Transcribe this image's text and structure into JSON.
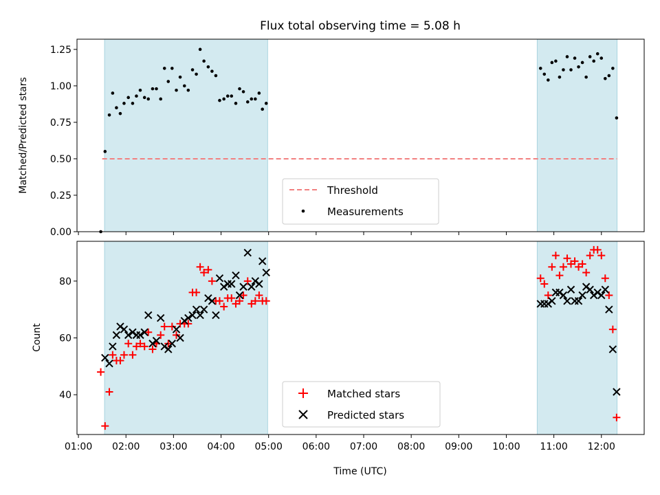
{
  "chart_data": {
    "type": "scatter",
    "title": "Flux total observing time = 5.08 h",
    "xlabel": "Time (UTC)",
    "x_ticks": [
      "01:00",
      "02:00",
      "03:00",
      "04:00",
      "05:00",
      "06:00",
      "07:00",
      "08:00",
      "09:00",
      "10:00",
      "11:00",
      "12:00"
    ],
    "xlim_hours": [
      0.97,
      12.9
    ],
    "shaded_intervals_hours": [
      [
        1.55,
        4.98
      ],
      [
        10.65,
        12.33
      ]
    ],
    "colors": {
      "shade": "#d3eaf0",
      "shade_edge": "#a9d3df",
      "threshold": "#f28080",
      "matched": "#ff0000",
      "predicted": "#000000",
      "measure": "#000000"
    },
    "panels": [
      {
        "ylabel": "Matched/Predicted stars",
        "ylim": [
          0,
          1.32
        ],
        "y_ticks": [
          0,
          0.25,
          0.5,
          0.75,
          1.0,
          1.25
        ],
        "y_tick_labels": [
          "0.00",
          "0.25",
          "0.50",
          "0.75",
          "1.00",
          "1.25"
        ],
        "threshold": 0.5,
        "threshold_range_hours": [
          1.5,
          12.33
        ],
        "legend": [
          "Threshold",
          "Measurements"
        ],
        "measurements": [
          [
            1.47,
            0.0
          ],
          [
            1.56,
            0.55
          ],
          [
            1.65,
            0.8
          ],
          [
            1.72,
            0.95
          ],
          [
            1.8,
            0.85
          ],
          [
            1.88,
            0.81
          ],
          [
            1.96,
            0.88
          ],
          [
            2.05,
            0.92
          ],
          [
            2.14,
            0.88
          ],
          [
            2.22,
            0.93
          ],
          [
            2.3,
            0.97
          ],
          [
            2.39,
            0.92
          ],
          [
            2.47,
            0.91
          ],
          [
            2.56,
            0.98
          ],
          [
            2.64,
            0.98
          ],
          [
            2.73,
            0.91
          ],
          [
            2.81,
            1.12
          ],
          [
            2.89,
            1.03
          ],
          [
            2.97,
            1.12
          ],
          [
            3.06,
            0.97
          ],
          [
            3.14,
            1.06
          ],
          [
            3.23,
            1.0
          ],
          [
            3.31,
            0.97
          ],
          [
            3.4,
            1.11
          ],
          [
            3.48,
            1.08
          ],
          [
            3.56,
            1.25
          ],
          [
            3.64,
            1.17
          ],
          [
            3.73,
            1.13
          ],
          [
            3.81,
            1.1
          ],
          [
            3.89,
            1.07
          ],
          [
            3.97,
            0.9
          ],
          [
            4.06,
            0.91
          ],
          [
            4.14,
            0.93
          ],
          [
            4.22,
            0.93
          ],
          [
            4.31,
            0.88
          ],
          [
            4.39,
            0.98
          ],
          [
            4.47,
            0.96
          ],
          [
            4.56,
            0.89
          ],
          [
            4.64,
            0.91
          ],
          [
            4.72,
            0.91
          ],
          [
            4.8,
            0.95
          ],
          [
            4.87,
            0.84
          ],
          [
            4.95,
            0.88
          ],
          [
            10.72,
            1.12
          ],
          [
            10.8,
            1.08
          ],
          [
            10.88,
            1.04
          ],
          [
            10.96,
            1.16
          ],
          [
            11.04,
            1.17
          ],
          [
            11.12,
            1.06
          ],
          [
            11.2,
            1.11
          ],
          [
            11.28,
            1.2
          ],
          [
            11.36,
            1.11
          ],
          [
            11.44,
            1.19
          ],
          [
            11.52,
            1.13
          ],
          [
            11.6,
            1.16
          ],
          [
            11.68,
            1.06
          ],
          [
            11.76,
            1.2
          ],
          [
            11.84,
            1.17
          ],
          [
            11.92,
            1.22
          ],
          [
            12.0,
            1.19
          ],
          [
            12.08,
            1.05
          ],
          [
            12.16,
            1.07
          ],
          [
            12.24,
            1.12
          ],
          [
            12.32,
            0.78
          ]
        ]
      },
      {
        "ylabel": "Count",
        "ylim": [
          26,
          94
        ],
        "y_ticks": [
          40,
          60,
          80
        ],
        "y_tick_labels": [
          "40",
          "60",
          "80"
        ],
        "legend": [
          "Matched stars",
          "Predicted stars"
        ],
        "matched": [
          [
            1.47,
            48
          ],
          [
            1.56,
            29
          ],
          [
            1.65,
            41
          ],
          [
            1.72,
            54
          ],
          [
            1.8,
            52
          ],
          [
            1.88,
            52
          ],
          [
            1.96,
            54
          ],
          [
            2.05,
            58
          ],
          [
            2.14,
            54
          ],
          [
            2.22,
            57
          ],
          [
            2.3,
            58
          ],
          [
            2.39,
            57
          ],
          [
            2.47,
            62
          ],
          [
            2.56,
            56
          ],
          [
            2.64,
            58
          ],
          [
            2.73,
            61
          ],
          [
            2.81,
            64
          ],
          [
            2.89,
            58
          ],
          [
            2.97,
            64
          ],
          [
            3.06,
            61
          ],
          [
            3.14,
            65
          ],
          [
            3.23,
            65
          ],
          [
            3.31,
            65
          ],
          [
            3.4,
            76
          ],
          [
            3.48,
            76
          ],
          [
            3.56,
            85
          ],
          [
            3.64,
            83
          ],
          [
            3.73,
            84
          ],
          [
            3.81,
            80
          ],
          [
            3.89,
            73
          ],
          [
            3.97,
            73
          ],
          [
            4.06,
            71
          ],
          [
            4.14,
            74
          ],
          [
            4.22,
            74
          ],
          [
            4.31,
            72
          ],
          [
            4.39,
            73
          ],
          [
            4.47,
            75
          ],
          [
            4.56,
            80
          ],
          [
            4.64,
            72
          ],
          [
            4.72,
            73
          ],
          [
            4.8,
            75
          ],
          [
            4.87,
            73
          ],
          [
            4.95,
            73
          ],
          [
            10.72,
            81
          ],
          [
            10.8,
            79
          ],
          [
            10.88,
            75
          ],
          [
            10.96,
            85
          ],
          [
            11.04,
            89
          ],
          [
            11.12,
            82
          ],
          [
            11.2,
            85
          ],
          [
            11.28,
            88
          ],
          [
            11.36,
            86
          ],
          [
            11.44,
            87
          ],
          [
            11.52,
            85
          ],
          [
            11.6,
            86
          ],
          [
            11.68,
            83
          ],
          [
            11.76,
            89
          ],
          [
            11.84,
            91
          ],
          [
            11.92,
            91
          ],
          [
            12.0,
            89
          ],
          [
            12.08,
            81
          ],
          [
            12.16,
            75
          ],
          [
            12.24,
            63
          ],
          [
            12.32,
            32
          ]
        ],
        "predicted": [
          [
            1.56,
            53
          ],
          [
            1.65,
            51
          ],
          [
            1.72,
            57
          ],
          [
            1.8,
            61
          ],
          [
            1.88,
            64
          ],
          [
            1.96,
            63
          ],
          [
            2.05,
            61
          ],
          [
            2.14,
            62
          ],
          [
            2.22,
            61
          ],
          [
            2.3,
            61
          ],
          [
            2.39,
            62
          ],
          [
            2.47,
            68
          ],
          [
            2.56,
            58
          ],
          [
            2.64,
            59
          ],
          [
            2.73,
            67
          ],
          [
            2.81,
            57
          ],
          [
            2.89,
            56
          ],
          [
            2.97,
            58
          ],
          [
            3.06,
            63
          ],
          [
            3.14,
            60
          ],
          [
            3.23,
            66
          ],
          [
            3.31,
            67
          ],
          [
            3.4,
            68
          ],
          [
            3.48,
            70
          ],
          [
            3.56,
            68
          ],
          [
            3.64,
            70
          ],
          [
            3.73,
            74
          ],
          [
            3.81,
            73
          ],
          [
            3.89,
            68
          ],
          [
            3.97,
            81
          ],
          [
            4.06,
            78
          ],
          [
            4.14,
            79
          ],
          [
            4.22,
            79
          ],
          [
            4.31,
            82
          ],
          [
            4.39,
            75
          ],
          [
            4.47,
            78
          ],
          [
            4.56,
            90
          ],
          [
            4.64,
            78
          ],
          [
            4.72,
            80
          ],
          [
            4.8,
            79
          ],
          [
            4.87,
            87
          ],
          [
            4.95,
            83
          ],
          [
            10.72,
            72
          ],
          [
            10.8,
            72
          ],
          [
            10.88,
            72
          ],
          [
            10.96,
            73
          ],
          [
            11.04,
            76
          ],
          [
            11.12,
            76
          ],
          [
            11.2,
            75
          ],
          [
            11.28,
            73
          ],
          [
            11.36,
            77
          ],
          [
            11.44,
            73
          ],
          [
            11.52,
            73
          ],
          [
            11.6,
            75
          ],
          [
            11.68,
            78
          ],
          [
            11.76,
            77
          ],
          [
            11.84,
            75
          ],
          [
            11.92,
            76
          ],
          [
            12.0,
            75
          ],
          [
            12.08,
            77
          ],
          [
            12.16,
            70
          ],
          [
            12.24,
            56
          ],
          [
            12.32,
            41
          ]
        ]
      }
    ]
  }
}
